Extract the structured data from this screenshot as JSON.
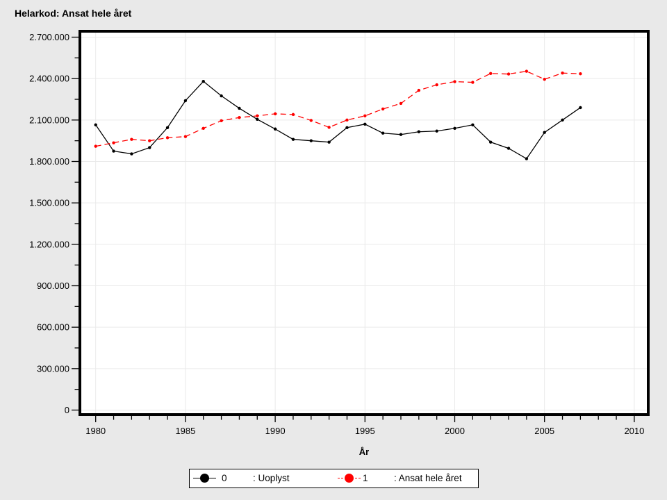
{
  "title": "Helarkod: Ansat hele året",
  "chart_data": {
    "type": "line",
    "title": "Helarkod: Ansat hele året",
    "xlabel": "År",
    "ylabel": "",
    "grid": true,
    "legend_position": "bottom",
    "xlim": [
      1979.2,
      2010.7
    ],
    "ylim": [
      0,
      2700000
    ],
    "x_major_ticks": [
      1980,
      1985,
      1990,
      1995,
      2000,
      2005,
      2010
    ],
    "x_tick_labels": [
      "1980",
      "1985",
      "1990",
      "1995",
      "2000",
      "2005",
      "2010"
    ],
    "y_major_ticks": [
      0,
      300000,
      600000,
      900000,
      1200000,
      1500000,
      1800000,
      2100000,
      2400000,
      2700000
    ],
    "y_tick_labels": [
      "0",
      "300.000",
      "600.000",
      "900.000",
      "1.200.000",
      "1.500.000",
      "1.800.000",
      "2.100.000",
      "2.400.000",
      "2.700.000"
    ],
    "x": [
      1980,
      1981,
      1982,
      1983,
      1984,
      1985,
      1986,
      1987,
      1988,
      1989,
      1990,
      1991,
      1992,
      1993,
      1994,
      1995,
      1996,
      1997,
      1998,
      1999,
      2000,
      2001,
      2002,
      2003,
      2004,
      2005,
      2006,
      2007
    ],
    "series": [
      {
        "name": "0",
        "label": ": Uoplyst",
        "color": "#000000",
        "line_style": "solid",
        "values": [
          2065000,
          1875000,
          1855000,
          1900000,
          2045000,
          2240000,
          2380000,
          2275000,
          2185000,
          2105000,
          2035000,
          1960000,
          1950000,
          1940000,
          2045000,
          2070000,
          2005000,
          1995000,
          2015000,
          2020000,
          2040000,
          2065000,
          1940000,
          1895000,
          1820000,
          2010000,
          2100000,
          2190000
        ]
      },
      {
        "name": "1",
        "label": ": Ansat hele året",
        "color": "#ff0000",
        "line_style": "dashed",
        "values": [
          1910000,
          1935000,
          1960000,
          1950000,
          1972000,
          1980000,
          2040000,
          2095000,
          2118000,
          2130000,
          2145000,
          2140000,
          2097000,
          2047000,
          2100000,
          2130000,
          2180000,
          2220000,
          2315000,
          2355000,
          2378000,
          2373000,
          2437000,
          2433000,
          2453000,
          2395000,
          2440000,
          2435000
        ]
      }
    ]
  },
  "legend": {
    "entries": [
      {
        "symbol_label": "0",
        "desc": ": Uoplyst",
        "color": "#000000",
        "dash": "solid"
      },
      {
        "symbol_label": "1",
        "desc": ": Ansat hele året",
        "color": "#ff0000",
        "dash": "dashed"
      }
    ]
  },
  "colors": {
    "background": "#e9e9e9",
    "plot_bg": "#ffffff",
    "grid": "#eaeaea",
    "frame": "#000000",
    "series0": "#000000",
    "series1": "#ff0000"
  }
}
